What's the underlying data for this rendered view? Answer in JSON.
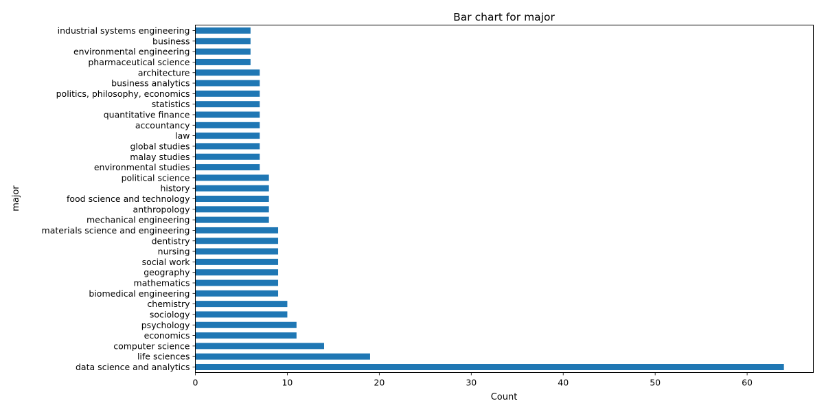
{
  "chart_data": {
    "type": "bar",
    "orientation": "horizontal",
    "title": "Bar chart for major",
    "xlabel": "Count",
    "ylabel": "major",
    "xlim": [
      0,
      67.2
    ],
    "xticks": [
      0,
      10,
      20,
      30,
      40,
      50,
      60
    ],
    "bar_color": "#1f77b4",
    "grid": false,
    "categories": [
      "data science and analytics",
      "life sciences",
      "computer science",
      "economics",
      "psychology",
      "sociology",
      "chemistry",
      "biomedical engineering",
      "mathematics",
      "geography",
      "social work",
      "nursing",
      "dentistry",
      "materials science and engineering",
      "mechanical engineering",
      "anthropology",
      "food science and technology",
      "history",
      "political science",
      "environmental studies",
      "malay studies",
      "global studies",
      "law",
      "accountancy",
      "quantitative finance",
      "statistics",
      "politics, philosophy, economics",
      "business analytics",
      "architecture",
      "pharmaceutical science",
      "environmental engineering",
      "business",
      "industrial systems engineering"
    ],
    "values": [
      64,
      19,
      14,
      11,
      11,
      10,
      10,
      9,
      9,
      9,
      9,
      9,
      9,
      9,
      8,
      8,
      8,
      8,
      8,
      7,
      7,
      7,
      7,
      7,
      7,
      7,
      7,
      7,
      7,
      6,
      6,
      6,
      6
    ]
  }
}
